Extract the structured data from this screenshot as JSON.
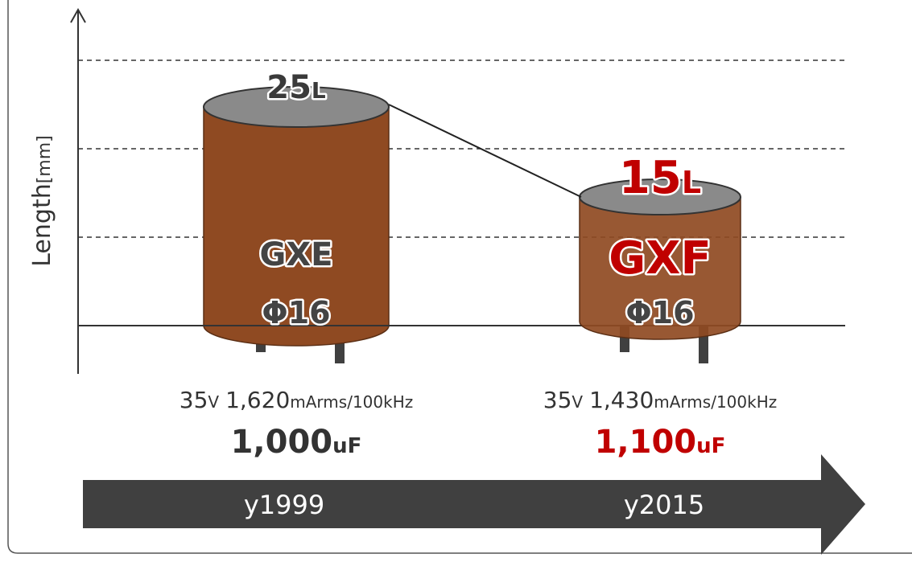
{
  "axis_label": {
    "main": "Length",
    "unit": "[mm]"
  },
  "items": [
    {
      "height": {
        "number": "25",
        "unit": "L"
      },
      "name": "GXE",
      "diameter": "Φ16",
      "voltage": {
        "number": "35",
        "unit": "V"
      },
      "ripple": {
        "number": "1,620",
        "unit": "mArms/100kHz"
      },
      "capacitance": {
        "number": "1,000",
        "unit": "uF"
      },
      "year": "y1999"
    },
    {
      "height": {
        "number": "15",
        "unit": "L"
      },
      "name": "GXF",
      "diameter": "Φ16",
      "voltage": {
        "number": "35",
        "unit": "V"
      },
      "ripple": {
        "number": "1,430",
        "unit": "mArms/100kHz"
      },
      "capacitance": {
        "number": "1,100",
        "unit": "uF"
      },
      "year": "y2015"
    }
  ]
}
